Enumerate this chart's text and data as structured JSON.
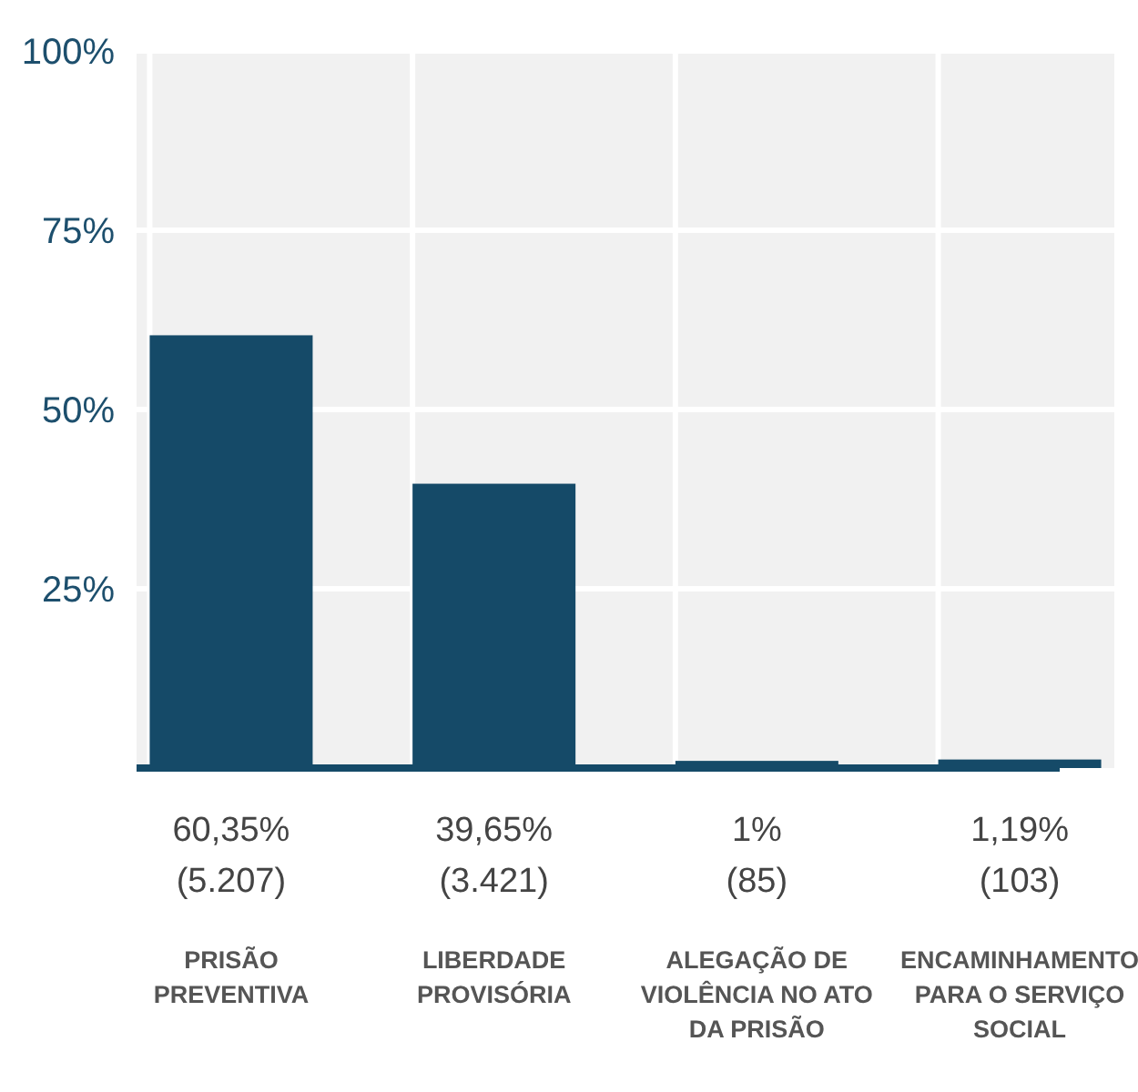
{
  "chart_data": {
    "type": "bar",
    "categories": [
      "PRISÃO PREVENTIVA",
      "LIBERDADE PROVISÓRIA",
      "ALEGAÇÃO DE VIOLÊNCIA NO ATO DA PRISÃO",
      "ENCAMINHAMENTO PARA O SERVIÇO SOCIAL"
    ],
    "values": [
      60.35,
      39.65,
      1,
      1.19
    ],
    "value_labels": [
      "60,35% (5.207)",
      "39,65% (3.421)",
      "1% (85)",
      "1,19% (103)"
    ],
    "color": "#154a68",
    "ylim": [
      0,
      100
    ],
    "yticks": [
      {
        "value": 25,
        "label": "25%"
      },
      {
        "value": 50,
        "label": "50%"
      },
      {
        "value": 75,
        "label": "75%"
      },
      {
        "value": 100,
        "label": "100%"
      }
    ],
    "grid": true
  }
}
